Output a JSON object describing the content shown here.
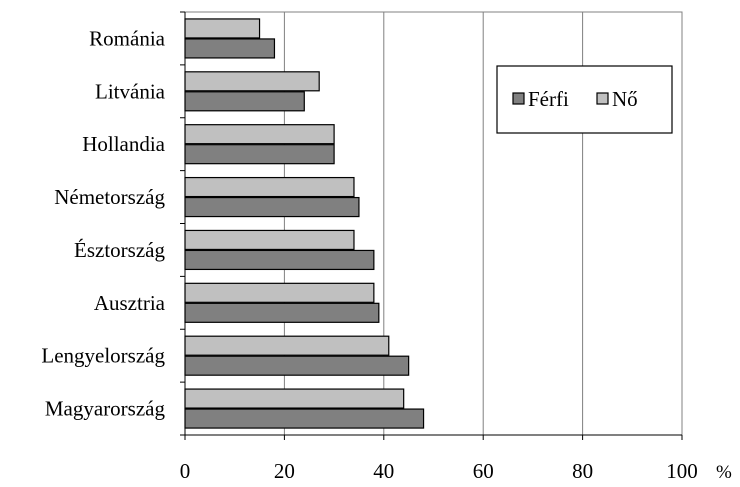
{
  "chart_data": {
    "type": "bar",
    "orientation": "horizontal",
    "categories": [
      "Románia",
      "Litvánia",
      "Hollandia",
      "Németország",
      "Észtország",
      "Ausztria",
      "Lengyelország",
      "Magyarország"
    ],
    "series": [
      {
        "name": "Nő",
        "values": [
          15,
          27,
          30,
          34,
          34,
          38,
          41,
          44
        ],
        "color": "#c0c0c0"
      },
      {
        "name": "Férfi",
        "values": [
          18,
          24,
          30,
          35,
          38,
          39,
          45,
          48
        ],
        "color": "#808080"
      }
    ],
    "x_ticks": [
      "0",
      "20",
      "40",
      "60",
      "80",
      "100"
    ],
    "xlim": [
      0,
      100
    ],
    "unit": "%",
    "grid": true,
    "legend": {
      "position": "top-right",
      "entries": [
        {
          "label": "Férfi",
          "color": "#808080"
        },
        {
          "label": "Nő",
          "color": "#c0c0c0"
        }
      ]
    },
    "title": "",
    "xlabel": "",
    "ylabel": ""
  }
}
